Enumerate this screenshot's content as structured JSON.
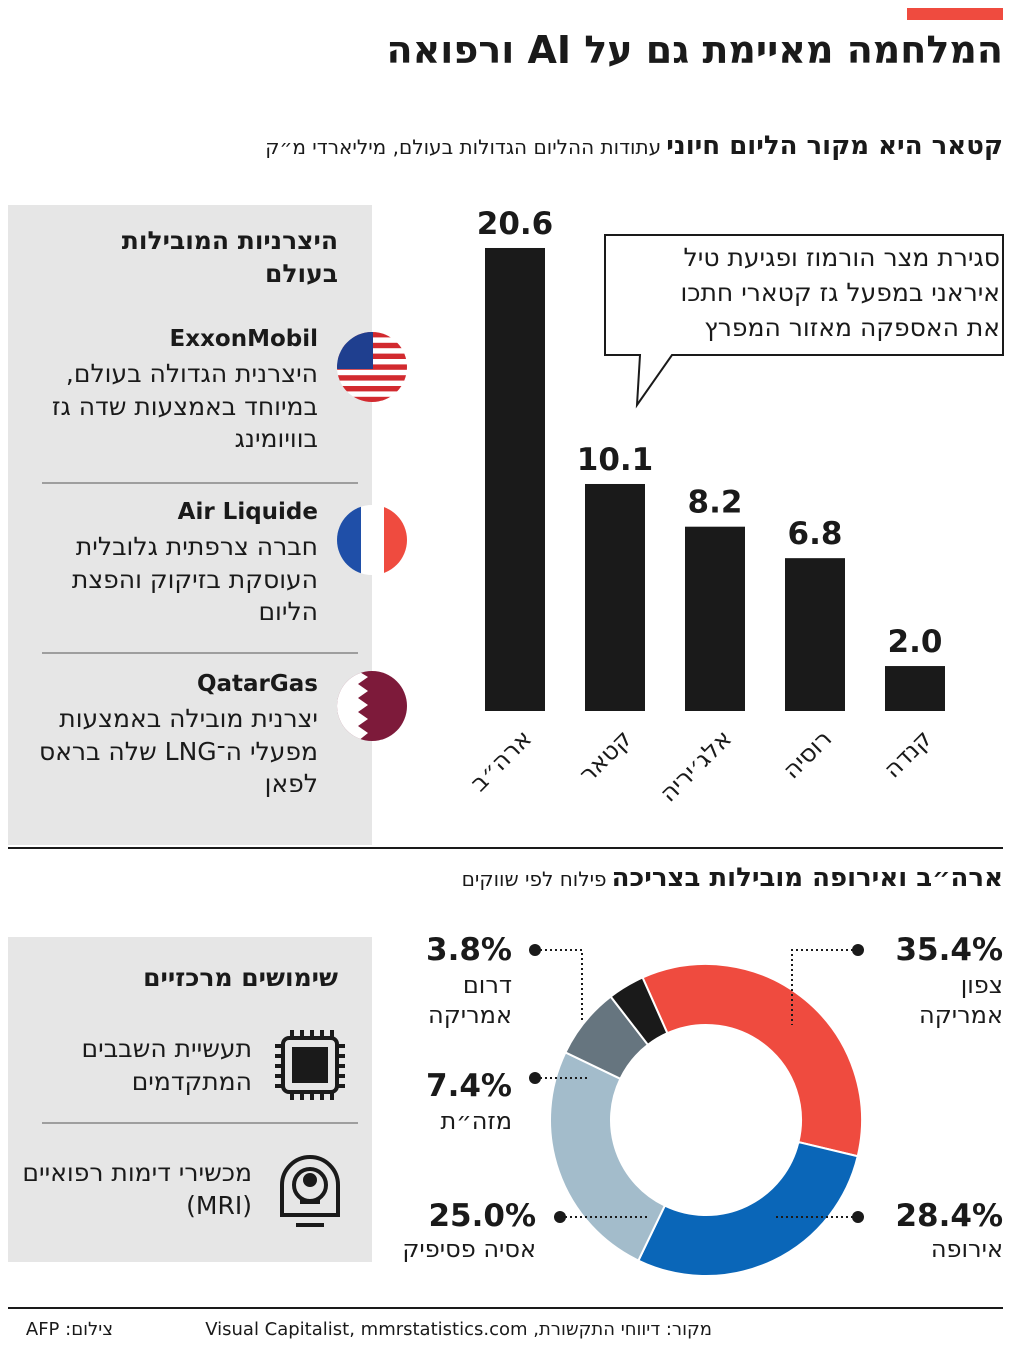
{
  "header": {
    "title": "המלחמה מאיימת גם על AI ורפואה"
  },
  "chart_data": [
    {
      "type": "bar",
      "title": "קטאר היא מקור הליום חיוני",
      "subtitle": "עתודות ההליום הגדולות בעולם, מיליארדי מ״ק",
      "categories": [
        "ארה״ב",
        "קטאר",
        "אלג׳יריה",
        "רוסיה",
        "קנדה"
      ],
      "values": [
        20.6,
        10.1,
        8.2,
        6.8,
        2.0
      ],
      "value_labels": [
        "20.6",
        "10.1",
        "8.2",
        "6.8",
        "2.0"
      ],
      "color": "#1a1a1a",
      "ylim": [
        0,
        21
      ],
      "annotation": [
        "סגירת מצר הורמוז ופגיעת טיל",
        "איראני במפעל גז קטארי חתכו",
        "את האספקה מאזור המפרץ"
      ]
    },
    {
      "type": "donut",
      "title": "ארה״ב ואירופה מובילות בצריכה",
      "subtitle": "פילוח לפי שווקים",
      "categories": [
        "צפון אמריקה",
        "אירופה",
        "אסיה פסיפיק",
        "מזה״ת",
        "דרום אמריקה"
      ],
      "values": [
        35.4,
        28.4,
        25.0,
        7.4,
        3.8
      ],
      "value_labels": [
        "35.4%",
        "28.4%",
        "25.0%",
        "7.4%",
        "3.8%"
      ],
      "colors": [
        "#ef4b3f",
        "#0a66b8",
        "#a3bccb",
        "#66757f",
        "#1a1a1a"
      ]
    }
  ],
  "producers": {
    "title": "היצרניות המובילות בעולם",
    "items": [
      {
        "name": "ExxonMobil",
        "description": "היצרנית הגדולה בעולם, במיוחד באמצעות שדה גז בוויומינג"
      },
      {
        "name": "Air Liquide",
        "description": "חברה צרפתית גלובלית העוסקת בזיקוק והפצת הליום"
      },
      {
        "name": "QatarGas",
        "description": "יצרנית מובילה באמצעות מפעלי ה־LNG שלה בראס לפאן"
      }
    ]
  },
  "uses": {
    "title": "שימושים מרכזיים",
    "items": [
      "תעשיית השבבים המתקדמים",
      "מכשירי דימות רפואיים (MRI)"
    ]
  },
  "footer": {
    "source": "מקור: דיווחי התקשורת, Visual Capitalist, mmrstatistics.com",
    "credit": "צילום: AFP"
  }
}
